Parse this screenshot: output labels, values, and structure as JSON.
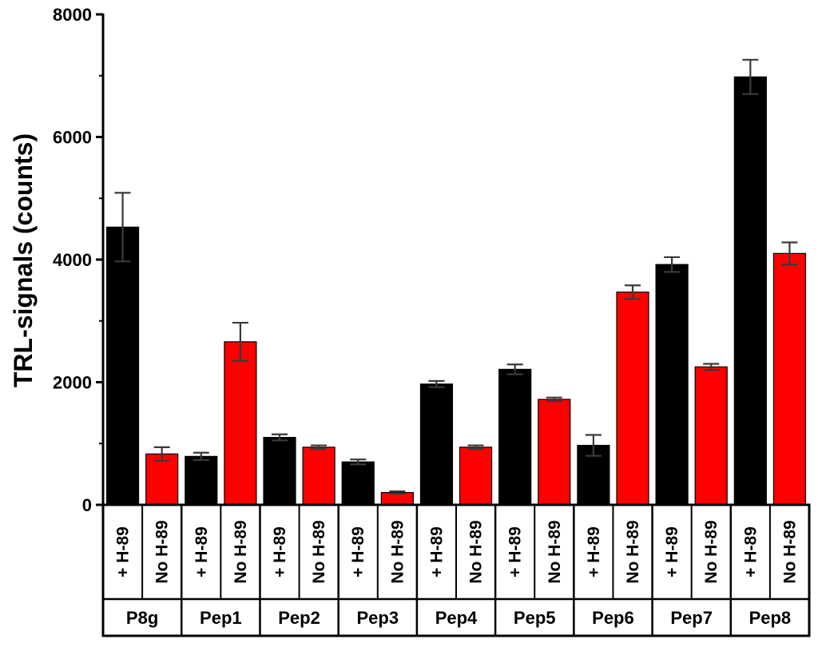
{
  "chart_data": {
    "type": "bar",
    "title": "",
    "ylabel": "TRL-signals (counts)",
    "xlabel": "",
    "ylim": [
      0,
      8000
    ],
    "yticks": [
      "0",
      "2000",
      "4000",
      "6000",
      "8000"
    ],
    "grid": false,
    "categories": [
      "P8g",
      "Pep1",
      "Pep2",
      "Pep3",
      "Pep4",
      "Pep5",
      "Pep6",
      "Pep7",
      "Pep8"
    ],
    "conditions": [
      "+ H-89",
      "No H-89"
    ],
    "colors": {
      "+ H-89": "#000000",
      "No H-89": "#ff0000"
    },
    "series": [
      {
        "values": [
          4530,
          790,
          1100,
          700,
          1970,
          2210,
          970,
          3920,
          6980
        ],
        "errors": [
          560,
          60,
          50,
          40,
          50,
          80,
          170,
          120,
          280
        ]
      },
      {
        "values": [
          830,
          2660,
          940,
          200,
          940,
          1720,
          3470,
          2250,
          4100
        ],
        "errors": [
          110,
          310,
          30,
          20,
          30,
          30,
          110,
          50,
          180
        ]
      }
    ]
  }
}
